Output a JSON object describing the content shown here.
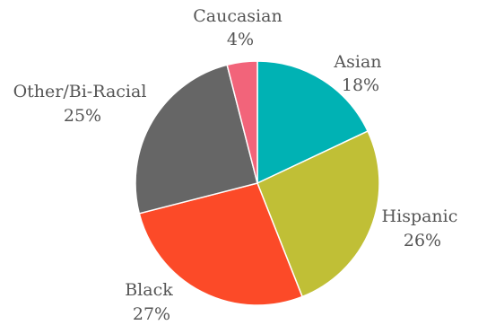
{
  "chart_data": {
    "type": "pie",
    "title": "",
    "start_angle_deg": 0,
    "direction": "clockwise",
    "legend": "none",
    "slices": [
      {
        "label": "Asian",
        "value_label": "18%",
        "value": 18,
        "color": "#00b2b4"
      },
      {
        "label": "Hispanic",
        "value_label": "26%",
        "value": 26,
        "color": "#c0bf36"
      },
      {
        "label": "Black",
        "value_label": "27%",
        "value": 27,
        "color": "#fc4a28"
      },
      {
        "label": "Other/Bi-Racial",
        "value_label": "25%",
        "value": 25,
        "color": "#666666"
      },
      {
        "label": "Caucasian",
        "value_label": "4%",
        "value": 4,
        "color": "#f2647a"
      }
    ]
  }
}
